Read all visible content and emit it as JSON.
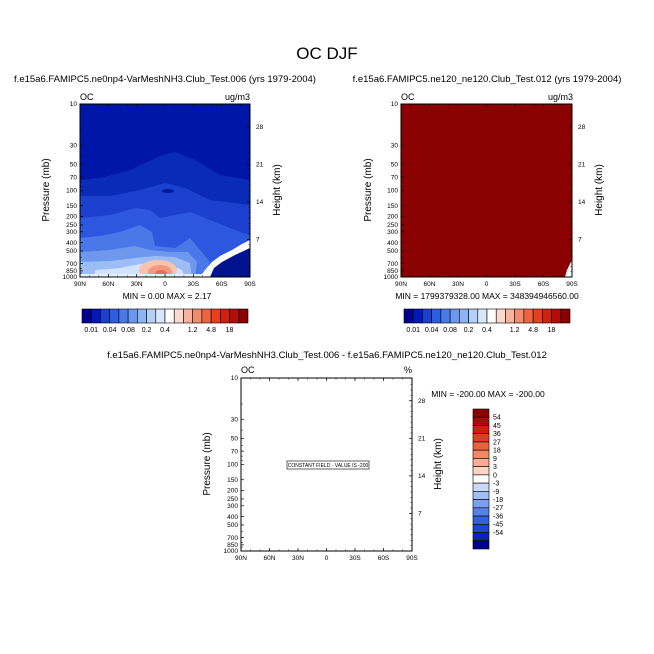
{
  "figure": {
    "title": "OC DJF"
  },
  "colors": {
    "ncl_blue_red": [
      "#00008f",
      "#0018b8",
      "#1a3fd1",
      "#2d5de0",
      "#4a7ae8",
      "#6a98ee",
      "#8db4f3",
      "#b3d0f7",
      "#d7e6fa",
      "#ffffff",
      "#fbd9cc",
      "#f6b39d",
      "#f28b6d",
      "#ee6442",
      "#e7401f",
      "#d22010",
      "#b30c0c",
      "#8b0000"
    ],
    "diff_colors": [
      "#00008f",
      "#0a24b5",
      "#1d45d6",
      "#3461e2",
      "#5481ea",
      "#7ba0f0",
      "#a1bef5",
      "#c7d9f9",
      "#ffffff",
      "#fcd4c6",
      "#f7ae95",
      "#f28766",
      "#ed6040",
      "#e43c1e",
      "#cc1f0f",
      "#a50b0b",
      "#8b0000"
    ]
  },
  "chart_data": [
    {
      "type": "heatmap",
      "panel_title": "f.e15a6.FAMIPC5.ne0np4-VarMeshNH3.Club_Test.006 (yrs 1979-2004)",
      "field_label": "OC",
      "units": "ug/m3",
      "xlabel": "",
      "ylabel": "Pressure (mb)",
      "y2label": "Height (km)",
      "xticks": [
        "90N",
        "60N",
        "30N",
        "0",
        "30S",
        "60S",
        "90S"
      ],
      "yticks": [
        "10",
        "30",
        "50",
        "70",
        "100",
        "150",
        "200",
        "250",
        "300",
        "400",
        "500",
        "700",
        "850",
        "1000"
      ],
      "y2ticks": [
        "28",
        "21",
        "14",
        "7"
      ],
      "min": 0.0,
      "max": 2.17,
      "stats_text": "MIN =   0.00   MAX =    2.17",
      "colorbar_labels": [
        "0.01",
        "0.04",
        "0.08",
        "0.2",
        "0.4",
        "1.2",
        "4.8",
        "18"
      ]
    },
    {
      "type": "heatmap",
      "panel_title": "f.e15a6.FAMIPC5.ne120_ne120.Club_Test.012 (yrs 1979-2004)",
      "field_label": "OC",
      "units": "ug/m3",
      "xlabel": "",
      "ylabel": "Pressure (mb)",
      "y2label": "Height (km)",
      "xticks": [
        "90N",
        "60N",
        "30N",
        "0",
        "30S",
        "60S",
        "90S"
      ],
      "yticks": [
        "10",
        "30",
        "50",
        "70",
        "100",
        "150",
        "200",
        "250",
        "300",
        "400",
        "500",
        "700",
        "850",
        "1000"
      ],
      "y2ticks": [
        "28",
        "21",
        "14",
        "7"
      ],
      "min": 1799379328.0,
      "max": 348394946560.0,
      "stats_text": "MIN = 1799379328.00   MAX = 348394946560.00",
      "colorbar_labels": [
        "0.01",
        "0.04",
        "0.08",
        "0.2",
        "0.4",
        "1.2",
        "4.8",
        "18"
      ]
    },
    {
      "type": "heatmap",
      "panel_title": "f.e15a6.FAMIPC5.ne0np4-VarMeshNH3.Club_Test.006 - f.e15a6.FAMIPC5.ne120_ne120.Club_Test.012",
      "field_label": "OC",
      "units": "%",
      "xlabel": "",
      "ylabel": "Pressure (mb)",
      "y2label": "Height (km)",
      "xticks": [
        "90N",
        "60N",
        "30N",
        "0",
        "30S",
        "60S",
        "90S"
      ],
      "yticks": [
        "10",
        "30",
        "50",
        "70",
        "100",
        "150",
        "200",
        "250",
        "300",
        "400",
        "500",
        "700",
        "850",
        "1000"
      ],
      "y2ticks": [
        "28",
        "21",
        "14",
        "7"
      ],
      "min": -200.0,
      "max": -200.0,
      "stats_text": "MIN = -200.00  MAX = -200.00",
      "annotation": "CONSTANT FIELD - VALUE IS -200",
      "colorbar_labels": [
        "54",
        "45",
        "36",
        "27",
        "18",
        "9",
        "3",
        "0",
        "-3",
        "-9",
        "-18",
        "-27",
        "-36",
        "-45",
        "-54"
      ]
    }
  ]
}
